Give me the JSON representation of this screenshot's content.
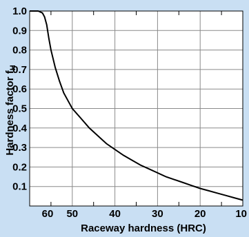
{
  "colors": {
    "background": "#c9dff3",
    "plot_background": "#ffffff",
    "grid": "#8a8a8a",
    "line": "#000000"
  },
  "chart_data": {
    "type": "line",
    "xlabel": "Raceway hardness (HRC)",
    "ylabel": "Hardness factor f",
    "ylabel_subscript": "H",
    "xlim": [
      60,
      10
    ],
    "ylim": [
      0,
      1.0
    ],
    "xticks": [
      60,
      50,
      40,
      30,
      20,
      10
    ],
    "xtick_labels": [
      "60",
      "50",
      "40",
      "30",
      "20",
      "10"
    ],
    "yticks": [
      0.1,
      0.2,
      0.3,
      0.4,
      0.5,
      0.6,
      0.7,
      0.8,
      0.9,
      1.0
    ],
    "ytick_labels": [
      "0.1",
      "0.2",
      "0.3",
      "0.4",
      "0.5",
      "0.6",
      "0.7",
      "0.8",
      "0.9",
      "1.0"
    ],
    "grid": true,
    "series": [
      {
        "x": [
          60,
          58,
          57,
          56.5,
          56,
          55.5,
          55,
          54,
          53,
          52,
          51,
          50,
          48,
          46,
          44,
          42,
          40,
          38,
          36,
          34,
          32,
          30,
          28,
          26,
          24,
          22,
          20,
          18,
          16,
          14,
          12,
          10
        ],
        "y": [
          1.0,
          1.0,
          0.99,
          0.97,
          0.93,
          0.86,
          0.8,
          0.71,
          0.64,
          0.58,
          0.54,
          0.5,
          0.45,
          0.4,
          0.36,
          0.32,
          0.29,
          0.26,
          0.235,
          0.21,
          0.19,
          0.17,
          0.15,
          0.135,
          0.12,
          0.105,
          0.09,
          0.078,
          0.066,
          0.054,
          0.042,
          0.03
        ]
      }
    ]
  }
}
